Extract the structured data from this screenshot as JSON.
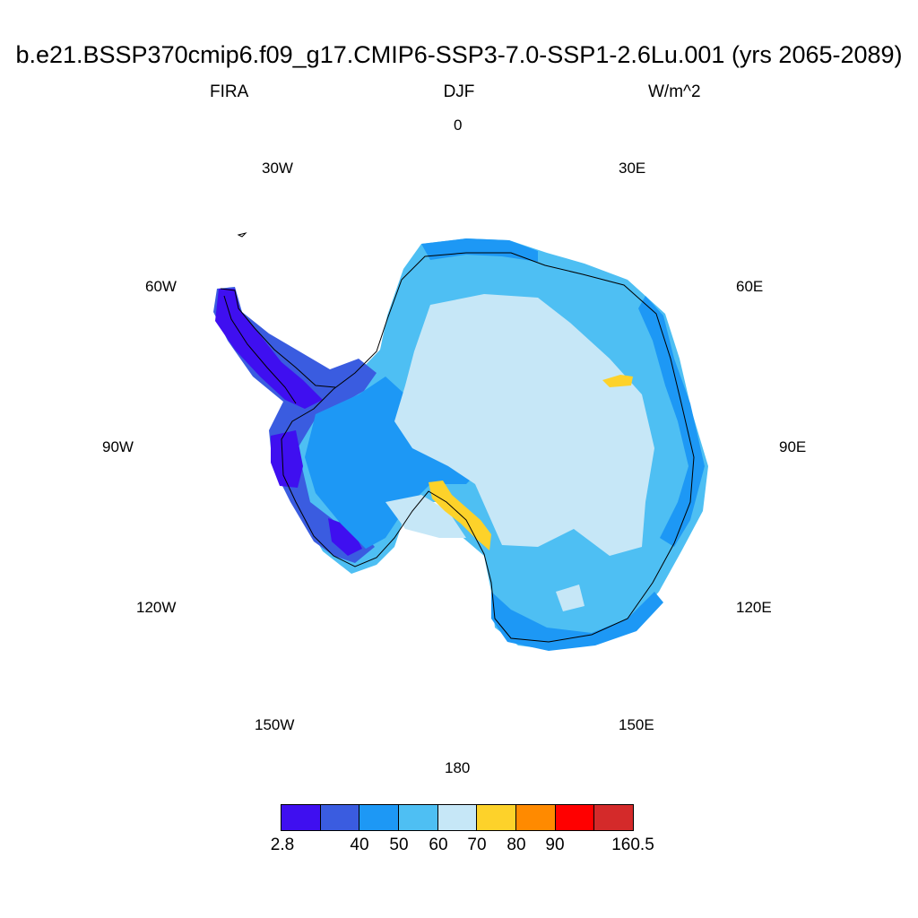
{
  "header": {
    "title": "b.e21.BSSP370cmip6.f09_g17.CMIP6-SSP3-7.0-SSP1-2.6Lu.001 (yrs 2065-2089)",
    "left": "FIRA",
    "center": "DJF",
    "right": "W/m^2"
  },
  "longitude_labels": {
    "lon_0": "0",
    "lon_30e": "30E",
    "lon_60e": "60E",
    "lon_90e": "90E",
    "lon_120e": "120E",
    "lon_150e": "150E",
    "lon_180": "180",
    "lon_150w": "150W",
    "lon_120w": "120W",
    "lon_90w": "90W",
    "lon_60w": "60W",
    "lon_30w": "30W"
  },
  "colorbar": {
    "colors": [
      "#3f0ff0",
      "#3a5ce0",
      "#1d98f5",
      "#4ebff3",
      "#c6e7f7",
      "#fdd22a",
      "#ff8a00",
      "#ff0000",
      "#d42a2a"
    ],
    "labels": {
      "l0": "2.8",
      "l1": "40",
      "l2": "50",
      "l3": "60",
      "l4": "70",
      "l5": "80",
      "l6": "90",
      "l7": "160.5"
    }
  }
}
